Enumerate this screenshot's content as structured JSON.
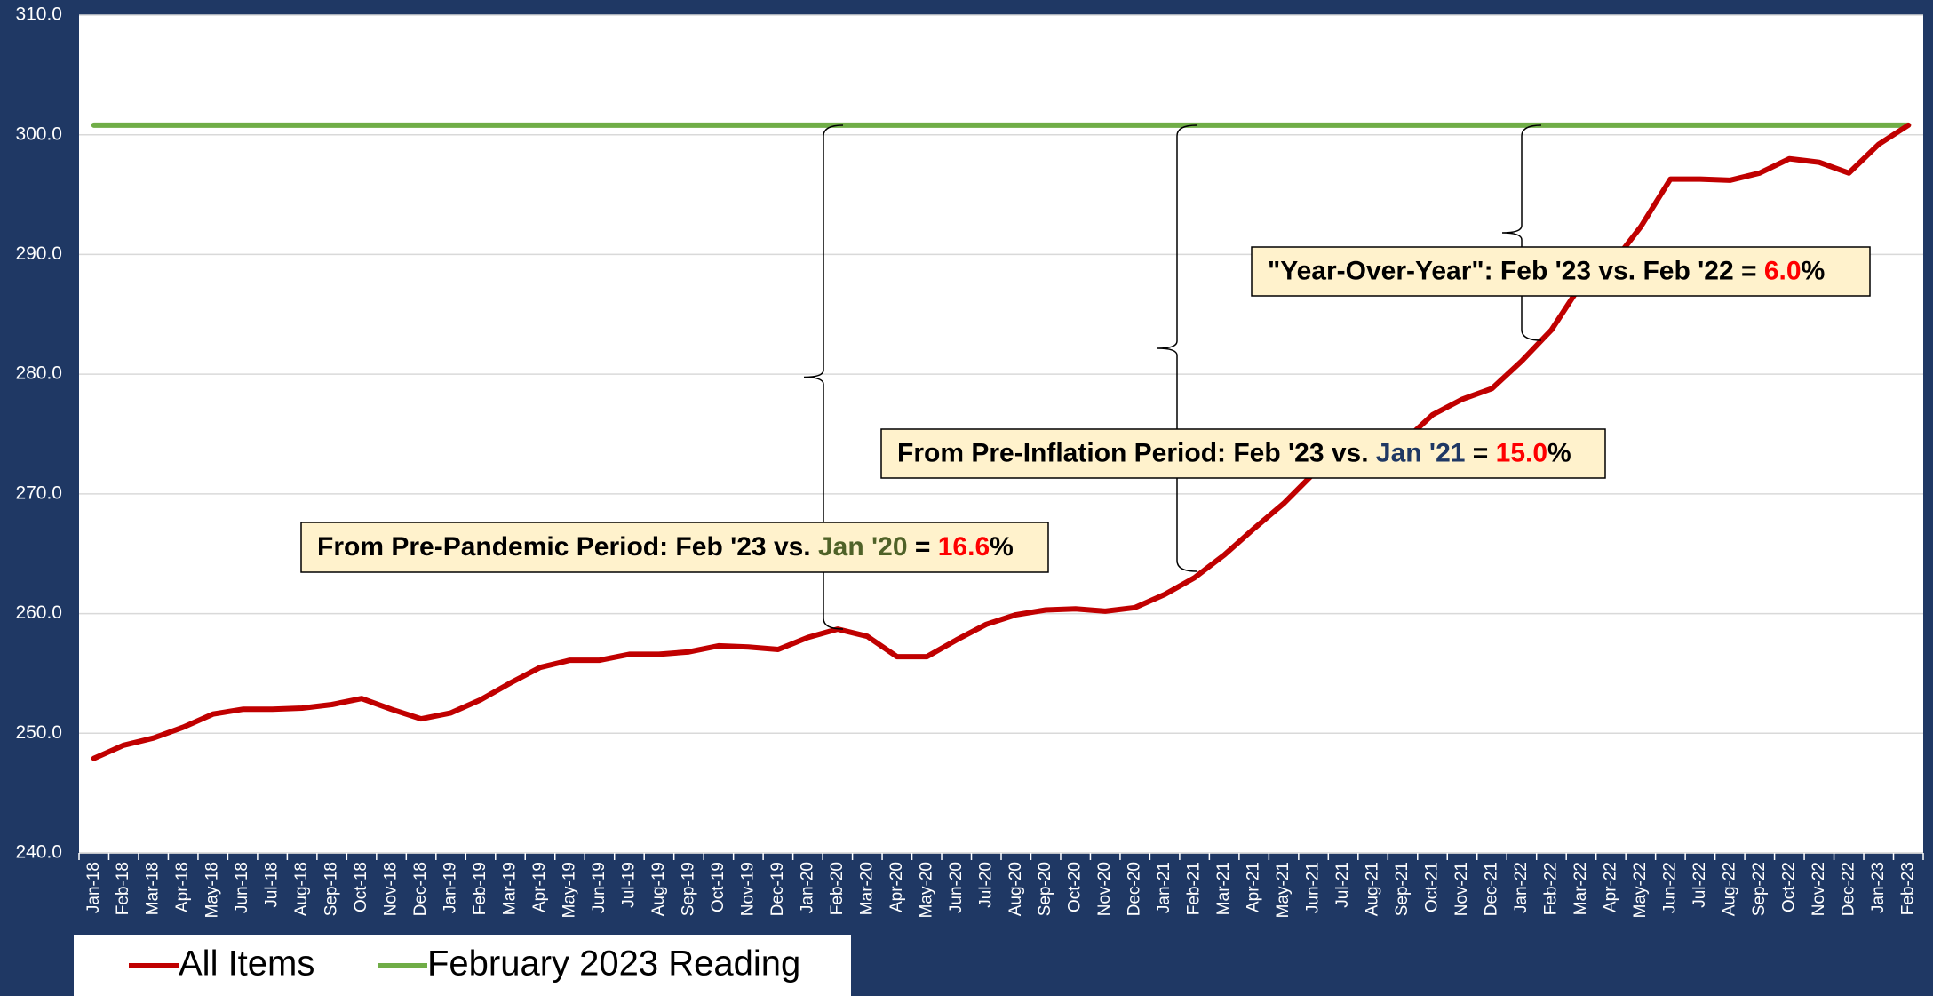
{
  "chart_data": {
    "type": "line",
    "categories": [
      "Jan-18",
      "Feb-18",
      "Mar-18",
      "Apr-18",
      "May-18",
      "Jun-18",
      "Jul-18",
      "Aug-18",
      "Sep-18",
      "Oct-18",
      "Nov-18",
      "Dec-18",
      "Jan-19",
      "Feb-19",
      "Mar-19",
      "Apr-19",
      "May-19",
      "Jun-19",
      "Jul-19",
      "Aug-19",
      "Sep-19",
      "Oct-19",
      "Nov-19",
      "Dec-19",
      "Jan-20",
      "Feb-20",
      "Mar-20",
      "Apr-20",
      "May-20",
      "Jun-20",
      "Jul-20",
      "Aug-20",
      "Sep-20",
      "Oct-20",
      "Nov-20",
      "Dec-20",
      "Jan-21",
      "Feb-21",
      "Mar-21",
      "Apr-21",
      "May-21",
      "Jun-21",
      "Jul-21",
      "Aug-21",
      "Sep-21",
      "Oct-21",
      "Nov-21",
      "Dec-21",
      "Jan-22",
      "Feb-22",
      "Mar-22",
      "Apr-22",
      "May-22",
      "Jun-22",
      "Jul-22",
      "Aug-22",
      "Sep-22",
      "Oct-22",
      "Nov-22",
      "Dec-22",
      "Jan-23",
      "Feb-23"
    ],
    "series": [
      {
        "name": "All Items",
        "color": "#c00000",
        "values": [
          247.9,
          249.0,
          249.6,
          250.5,
          251.6,
          252.0,
          252.0,
          252.1,
          252.4,
          252.9,
          252.0,
          251.2,
          251.7,
          252.8,
          254.2,
          255.5,
          256.1,
          256.1,
          256.6,
          256.6,
          256.8,
          257.3,
          257.2,
          257.0,
          258.0,
          258.7,
          258.1,
          256.4,
          256.4,
          257.8,
          259.1,
          259.9,
          260.3,
          260.4,
          260.2,
          260.5,
          261.6,
          263.0,
          264.9,
          267.1,
          269.2,
          271.7,
          273.0,
          273.6,
          274.3,
          276.6,
          277.9,
          278.8,
          281.1,
          283.7,
          287.5,
          289.1,
          292.3,
          296.3,
          296.3,
          296.2,
          296.8,
          298.0,
          297.7,
          296.8,
          299.2,
          300.8
        ]
      },
      {
        "name": "February 2023 Reading",
        "color": "#70ad47",
        "values": [
          300.8,
          300.8,
          300.8,
          300.8,
          300.8,
          300.8,
          300.8,
          300.8,
          300.8,
          300.8,
          300.8,
          300.8,
          300.8,
          300.8,
          300.8,
          300.8,
          300.8,
          300.8,
          300.8,
          300.8,
          300.8,
          300.8,
          300.8,
          300.8,
          300.8,
          300.8,
          300.8,
          300.8,
          300.8,
          300.8,
          300.8,
          300.8,
          300.8,
          300.8,
          300.8,
          300.8,
          300.8,
          300.8,
          300.8,
          300.8,
          300.8,
          300.8,
          300.8,
          300.8,
          300.8,
          300.8,
          300.8,
          300.8,
          300.8,
          300.8,
          300.8,
          300.8,
          300.8,
          300.8,
          300.8,
          300.8,
          300.8,
          300.8,
          300.8,
          300.8,
          300.8,
          300.8
        ]
      }
    ],
    "ylim": [
      240,
      310
    ],
    "yticks": [
      {
        "value": 240,
        "label": "240.0"
      },
      {
        "value": 250,
        "label": "250.0"
      },
      {
        "value": 260,
        "label": "260.0"
      },
      {
        "value": 270,
        "label": "270.0"
      },
      {
        "value": 280,
        "label": "280.0"
      },
      {
        "value": 290,
        "label": "290.0"
      },
      {
        "value": 300,
        "label": "300.0"
      },
      {
        "value": 310,
        "label": "310.0"
      }
    ],
    "grid": true,
    "legend": "bottom-left",
    "annotations": [
      {
        "parts": [
          {
            "text": "\"Year-Over-Year\": Feb '23 vs. Feb '22 = ",
            "color": "#000000"
          },
          {
            "text": "6.0",
            "color": "#ff0000"
          },
          {
            "text": "%",
            "color": "#000000"
          }
        ]
      },
      {
        "parts": [
          {
            "text": "From Pre-Inflation Period: Feb '23 vs. ",
            "color": "#000000"
          },
          {
            "text": "Jan '21",
            "color": "#1f3864"
          },
          {
            "text": " = ",
            "color": "#000000"
          },
          {
            "text": "15.0",
            "color": "#ff0000"
          },
          {
            "text": "%",
            "color": "#000000"
          }
        ]
      },
      {
        "parts": [
          {
            "text": "From Pre-Pandemic Period: Feb '23 vs. ",
            "color": "#000000"
          },
          {
            "text": "Jan '20",
            "color": "#4f6228"
          },
          {
            "text": " = ",
            "color": "#000000"
          },
          {
            "text": "16.6",
            "color": "#ff0000"
          },
          {
            "text": "%",
            "color": "#000000"
          }
        ]
      }
    ]
  }
}
